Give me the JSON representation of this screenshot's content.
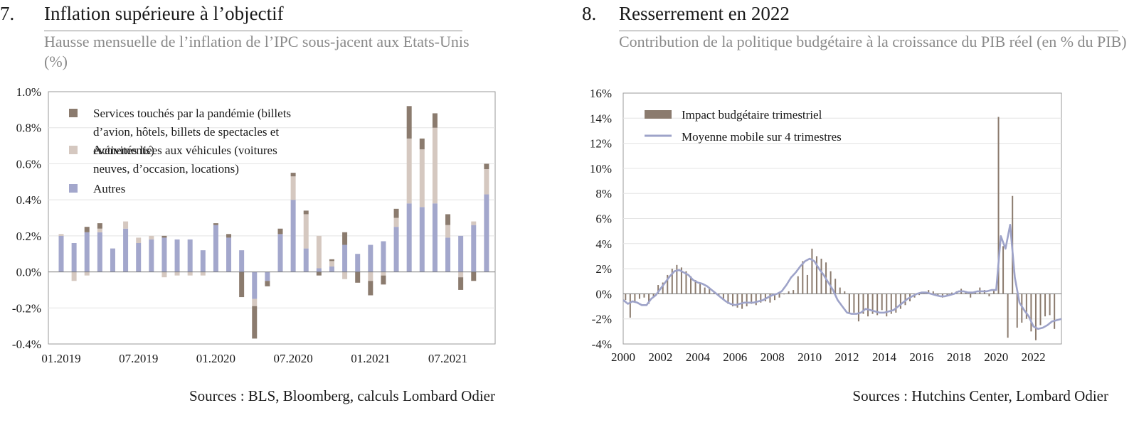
{
  "panel1": {
    "number": "7.",
    "title": "Inflation supérieure à l’objectif",
    "subtitle": "Hausse mensuelle de l’inflation de l’IPC sous-jacent aux Etats-Unis (%)",
    "sources": "Sources : BLS, Bloomberg, calculs Lombard Odier"
  },
  "panel2": {
    "number": "8.",
    "title": "Resserrement en 2022",
    "subtitle": "Contribution de la politique budgétaire à la croissance du PIB réel (en % du PIB)",
    "sources": "Sources : Hutchins Center, Lombard Odier"
  },
  "colors": {
    "pandemic": "#8b7b6e",
    "vehicles": "#d5c8c0",
    "autres": "#a3a7cc",
    "fiscal_bar": "#8b7b6e",
    "moving_avg": "#9ea3c9"
  },
  "chart_data": [
    {
      "type": "bar",
      "stacked": true,
      "title": "Inflation supérieure à l’objectif",
      "x_tick_labels": [
        "01.2019",
        "07.2019",
        "01.2020",
        "07.2020",
        "01.2021",
        "07.2021"
      ],
      "categories": [
        "01.2019",
        "02.2019",
        "03.2019",
        "04.2019",
        "05.2019",
        "06.2019",
        "07.2019",
        "08.2019",
        "09.2019",
        "10.2019",
        "11.2019",
        "12.2019",
        "01.2020",
        "02.2020",
        "03.2020",
        "04.2020",
        "05.2020",
        "06.2020",
        "07.2020",
        "08.2020",
        "09.2020",
        "10.2020",
        "11.2020",
        "12.2020",
        "01.2021",
        "02.2021",
        "03.2021",
        "04.2021",
        "05.2021",
        "06.2021",
        "07.2021",
        "08.2021",
        "09.2021",
        "10.2021"
      ],
      "ylim": [
        -0.4,
        1.0
      ],
      "y_ticks": [
        "-0.4%",
        "-0.2%",
        "0.0%",
        "0.2%",
        "0.4%",
        "0.6%",
        "0.8%",
        "1.0%"
      ],
      "legend_position": "top-left",
      "series": [
        {
          "name": "Autres",
          "color_key": "autres",
          "values": [
            0.2,
            0.16,
            0.22,
            0.22,
            0.13,
            0.24,
            0.16,
            0.18,
            0.19,
            0.18,
            0.18,
            0.12,
            0.26,
            0.19,
            0.12,
            -0.15,
            -0.05,
            0.21,
            0.4,
            0.13,
            0.02,
            0.03,
            0.15,
            0.1,
            0.15,
            0.17,
            0.25,
            0.38,
            0.36,
            0.38,
            0.19,
            0.2,
            0.26,
            0.43
          ]
        },
        {
          "name": "Activités liées aux véhicules (voitures neuves, d’occasion, locations)",
          "color_key": "vehicles",
          "values": [
            0.01,
            -0.05,
            -0.02,
            0.02,
            0.0,
            0.04,
            0.03,
            0.02,
            -0.03,
            -0.02,
            -0.02,
            -0.02,
            0.0,
            0.0,
            0.0,
            -0.04,
            0.0,
            0.0,
            0.13,
            0.19,
            0.18,
            0.03,
            -0.04,
            0.0,
            -0.05,
            -0.02,
            0.05,
            0.36,
            0.32,
            0.42,
            0.07,
            -0.03,
            0.02,
            0.14
          ]
        },
        {
          "name": "Services touchés par la pandémie (billets d’avion, hôtels, billets de spectacles et événements)",
          "color_key": "pandemic",
          "values": [
            0.0,
            0.0,
            0.03,
            0.03,
            0.0,
            0.0,
            0.0,
            0.0,
            0.01,
            0.0,
            0.0,
            0.0,
            0.01,
            0.02,
            -0.14,
            -0.18,
            -0.03,
            0.03,
            0.02,
            0.02,
            -0.02,
            0.01,
            0.07,
            -0.06,
            -0.08,
            -0.05,
            0.05,
            0.18,
            0.06,
            0.08,
            0.06,
            -0.07,
            -0.05,
            0.03
          ]
        }
      ]
    },
    {
      "type": "bar+line",
      "title": "Resserrement en 2022",
      "xlim": [
        2000,
        2023.5
      ],
      "x_tick_labels": [
        "2000",
        "2002",
        "2004",
        "2006",
        "2008",
        "2010",
        "2012",
        "2014",
        "2016",
        "2018",
        "2020",
        "2022"
      ],
      "ylim": [
        -4,
        16
      ],
      "y_ticks": [
        "-4%",
        "-2%",
        "0%",
        "2%",
        "4%",
        "6%",
        "8%",
        "10%",
        "12%",
        "14%",
        "16%"
      ],
      "legend_position": "top-left",
      "series": [
        {
          "name": "Impact budgétaire trimestriel",
          "type": "bar",
          "color_key": "fiscal_bar",
          "x_start": 2000.125,
          "x_step": 0.25,
          "values": [
            -0.5,
            -1.9,
            -0.7,
            -0.4,
            -0.3,
            -0.8,
            -0.2,
            0.7,
            0.9,
            1.5,
            2.0,
            2.3,
            2.1,
            1.8,
            1.4,
            1.1,
            0.9,
            0.5,
            0.4,
            0.2,
            -0.2,
            -0.5,
            -0.8,
            -1.0,
            -1.1,
            -1.2,
            -1.0,
            -0.8,
            -0.9,
            -0.7,
            -0.6,
            -0.7,
            -0.5,
            -0.3,
            0.0,
            0.2,
            0.3,
            1.4,
            2.6,
            1.5,
            3.6,
            3.0,
            2.8,
            2.5,
            1.8,
            1.2,
            0.5,
            0.2,
            -1.5,
            -1.5,
            -2.2,
            -1.6,
            -1.8,
            -1.6,
            -1.7,
            -1.3,
            -1.8,
            -1.6,
            -1.5,
            -1.2,
            -0.9,
            -0.6,
            -0.3,
            -0.1,
            0.1,
            0.3,
            0.2,
            -0.1,
            -0.3,
            -0.1,
            0.1,
            0.2,
            0.4,
            0.2,
            -0.3,
            0.2,
            0.5,
            0.3,
            -0.2,
            0.3,
            14.1,
            3.8,
            -3.5,
            7.8,
            -2.7,
            -2.3,
            -2.0,
            -3.0,
            -3.7,
            -2.5,
            -1.8,
            -1.7,
            -2.8
          ]
        },
        {
          "name": "Moyenne mobile sur 4 trimestres",
          "type": "line",
          "color_key": "moving_avg",
          "x": [
            2000.0,
            2000.25,
            2000.5,
            2000.75,
            2001.0,
            2001.25,
            2001.5,
            2001.75,
            2002.0,
            2002.25,
            2002.5,
            2002.75,
            2003.0,
            2003.25,
            2003.5,
            2003.75,
            2004.0,
            2004.25,
            2004.5,
            2004.75,
            2005.0,
            2005.25,
            2005.5,
            2005.75,
            2006.0,
            2006.25,
            2006.5,
            2006.75,
            2007.0,
            2007.25,
            2007.5,
            2007.75,
            2008.0,
            2008.25,
            2008.5,
            2008.75,
            2009.0,
            2009.25,
            2009.5,
            2009.75,
            2010.0,
            2010.25,
            2010.5,
            2010.75,
            2011.0,
            2011.25,
            2011.5,
            2011.75,
            2012.0,
            2012.25,
            2012.5,
            2012.75,
            2013.0,
            2013.25,
            2013.5,
            2013.75,
            2014.0,
            2014.25,
            2014.5,
            2014.75,
            2015.0,
            2015.25,
            2015.5,
            2015.75,
            2016.0,
            2016.25,
            2016.5,
            2016.75,
            2017.0,
            2017.25,
            2017.5,
            2017.75,
            2018.0,
            2018.25,
            2018.5,
            2018.75,
            2019.0,
            2019.25,
            2019.5,
            2019.75,
            2020.0,
            2020.25,
            2020.5,
            2020.75,
            2021.0,
            2021.25,
            2021.5,
            2021.75,
            2022.0,
            2022.25,
            2022.5,
            2022.75,
            2023.0,
            2023.5
          ],
          "values": [
            -0.5,
            -0.8,
            -0.6,
            -0.7,
            -0.9,
            -0.9,
            -0.4,
            -0.1,
            0.4,
            0.9,
            1.4,
            1.8,
            1.9,
            1.7,
            1.5,
            1.1,
            0.9,
            0.8,
            0.6,
            0.3,
            0.0,
            -0.3,
            -0.6,
            -0.8,
            -0.9,
            -0.8,
            -0.7,
            -0.7,
            -0.7,
            -0.6,
            -0.5,
            -0.3,
            -0.1,
            0.0,
            0.2,
            0.7,
            1.3,
            1.7,
            2.2,
            2.6,
            2.8,
            2.6,
            2.0,
            1.5,
            0.9,
            0.3,
            -0.5,
            -1.0,
            -1.5,
            -1.6,
            -1.6,
            -1.5,
            -1.2,
            -1.3,
            -1.4,
            -1.5,
            -1.5,
            -1.4,
            -1.3,
            -1.0,
            -0.7,
            -0.4,
            -0.2,
            0.0,
            0.1,
            0.1,
            0.0,
            -0.1,
            -0.2,
            -0.2,
            -0.1,
            0.0,
            0.2,
            0.2,
            0.1,
            0.1,
            0.2,
            0.2,
            0.2,
            0.3,
            0.3,
            4.6,
            3.6,
            5.5,
            1.3,
            -0.7,
            -1.3,
            -1.8,
            -2.6,
            -2.8,
            -2.7,
            -2.5,
            -2.2,
            -2.0
          ]
        }
      ]
    }
  ]
}
